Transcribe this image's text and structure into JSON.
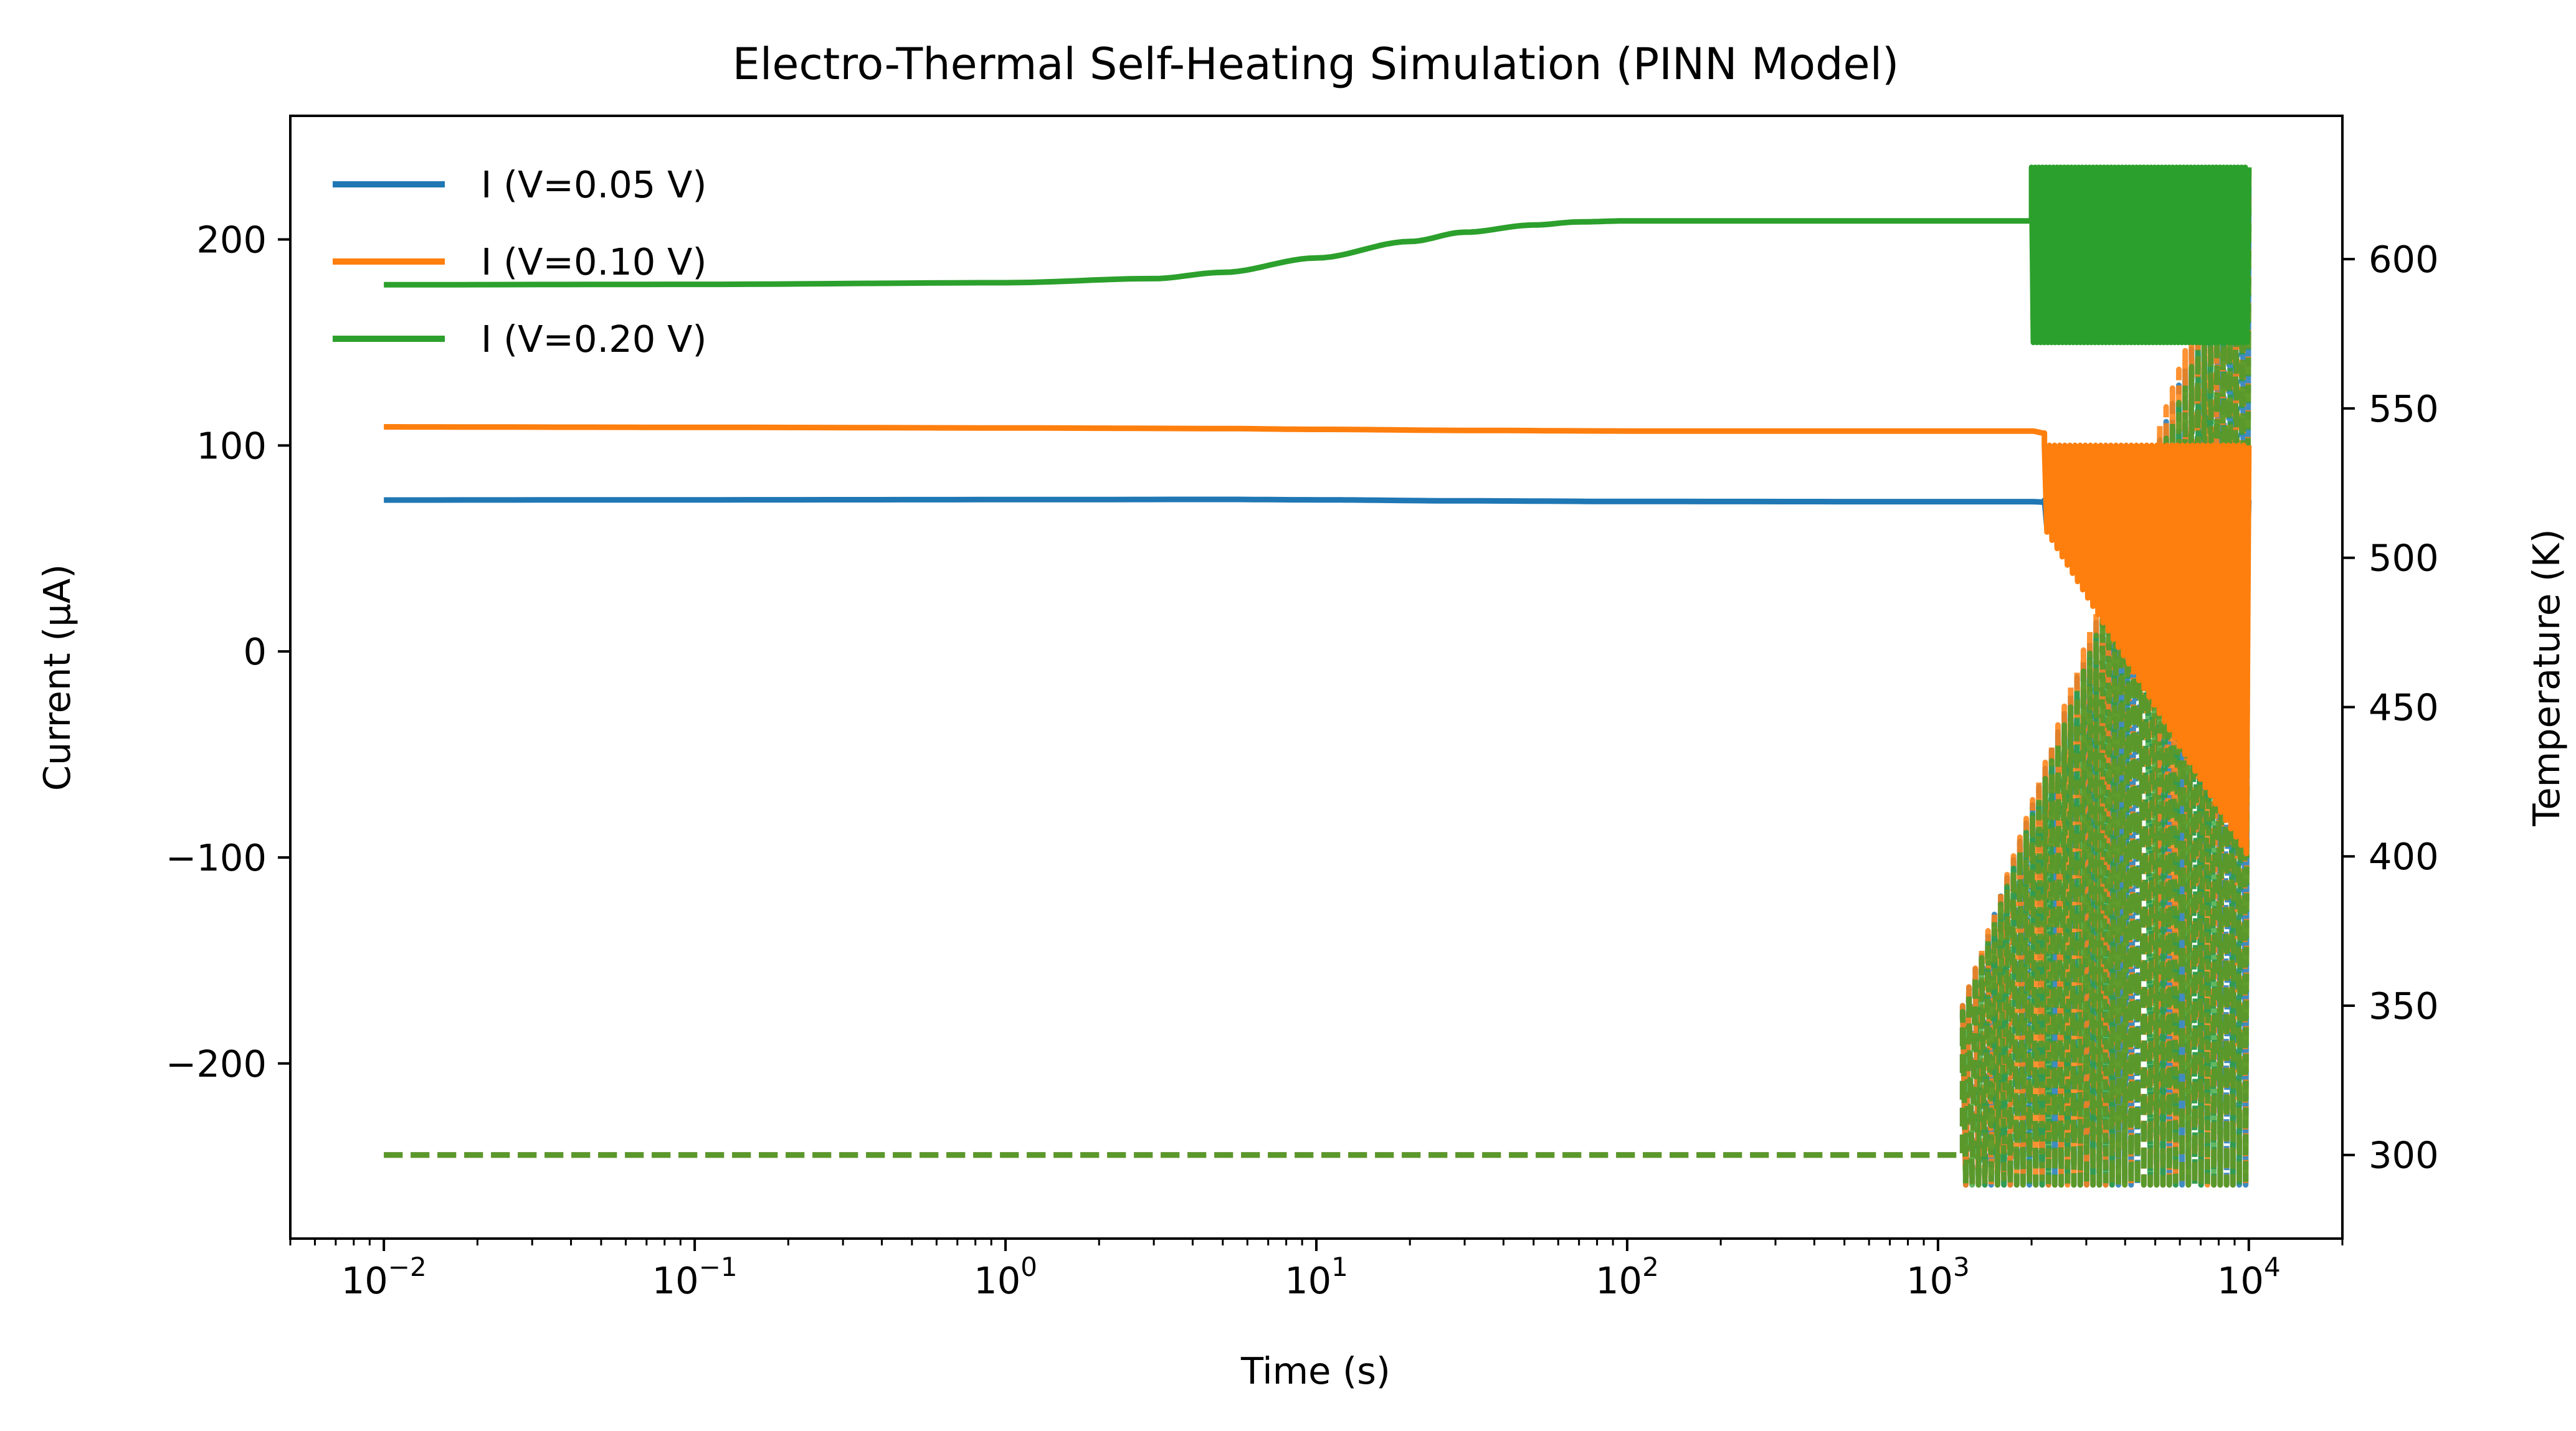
{
  "chart_data": {
    "type": "line",
    "title": "Electro-Thermal Self-Heating Simulation (PINN Model)",
    "xlabel": "Time (s)",
    "ylabel": "Current (μA)",
    "y2label": "Temperature (K)",
    "xscale": "log",
    "xlim": [
      0.005,
      20000
    ],
    "ylim": [
      -285,
      260
    ],
    "y2lim": [
      272,
      648
    ],
    "grid": false,
    "legend_position": "top-left",
    "x_ticks": [
      {
        "value": 0.01,
        "base": "10",
        "exp": "−2"
      },
      {
        "value": 0.1,
        "base": "10",
        "exp": "−1"
      },
      {
        "value": 1,
        "base": "10",
        "exp": "0"
      },
      {
        "value": 10,
        "base": "10",
        "exp": "1"
      },
      {
        "value": 100,
        "base": "10",
        "exp": "2"
      },
      {
        "value": 1000,
        "base": "10",
        "exp": "3"
      },
      {
        "value": 10000,
        "base": "10",
        "exp": "4"
      }
    ],
    "y_ticks": [
      {
        "value": 200,
        "label": "200"
      },
      {
        "value": 100,
        "label": "100"
      },
      {
        "value": 0,
        "label": "0"
      },
      {
        "value": -100,
        "label": "−100"
      },
      {
        "value": -200,
        "label": "−200"
      }
    ],
    "y2_ticks": [
      {
        "value": 600,
        "label": "600"
      },
      {
        "value": 550,
        "label": "550"
      },
      {
        "value": 500,
        "label": "500"
      },
      {
        "value": 450,
        "label": "450"
      },
      {
        "value": 400,
        "label": "400"
      },
      {
        "value": 350,
        "label": "350"
      },
      {
        "value": 300,
        "label": "300"
      }
    ],
    "series": [
      {
        "name": "I (V=0.05 V)",
        "color": "#1f77b4",
        "axis": "left",
        "x": [
          0.01,
          0.1,
          1,
          5,
          10,
          30,
          100,
          1000,
          2000,
          2200
        ],
        "y": [
          73.5,
          73.6,
          73.7,
          73.8,
          73.6,
          73.1,
          72.8,
          72.7,
          72.7,
          72.5
        ],
        "oscillation": {
          "start": 2200,
          "end": 10000,
          "upper": 73.5,
          "lower_start": 60,
          "lower_end": 30,
          "cycles": 40
        }
      },
      {
        "name": "I (V=0.10 V)",
        "color": "#ff7f0e",
        "axis": "left",
        "x": [
          0.01,
          0.1,
          1,
          5,
          10,
          30,
          100,
          1000,
          2000,
          2200
        ],
        "y": [
          109,
          108.8,
          108.5,
          108.2,
          107.8,
          107.3,
          107,
          107,
          107,
          106
        ],
        "oscillation": {
          "start": 2200,
          "end": 10000,
          "upper": 100,
          "lower_start": 60,
          "lower_end": -100,
          "cycles": 40
        }
      },
      {
        "name": "I (V=0.20 V)",
        "color": "#2ca02c",
        "axis": "left",
        "x": [
          0.01,
          0.1,
          1,
          3,
          5,
          10,
          20,
          30,
          50,
          70,
          100,
          300,
          1000,
          2000
        ],
        "y": [
          178,
          178.2,
          179,
          181,
          184,
          191,
          199,
          203.5,
          207,
          208.5,
          209,
          209,
          209,
          209
        ],
        "oscillation": {
          "start": 2000,
          "end": 10000,
          "upper": 235,
          "lower_start": 150,
          "lower_end": 150,
          "cycles": 60
        }
      }
    ],
    "temperature_series": [
      {
        "color": "#1f77b4",
        "axis": "right",
        "x": [
          0.01,
          1200
        ],
        "y": [
          300,
          300
        ],
        "oscillation": {
          "start": 1200,
          "end": 10000,
          "lower": 290,
          "upper_start": 350,
          "upper_end": 625,
          "cycles": 45
        }
      },
      {
        "color": "#ff7f0e",
        "axis": "right",
        "x": [
          0.01,
          1200
        ],
        "y": [
          300,
          300
        ],
        "oscillation": {
          "start": 1200,
          "end": 10000,
          "lower": 290,
          "upper_start": 350,
          "upper_end": 632,
          "cycles": 45
        }
      },
      {
        "color": "#2ca02c",
        "axis": "right",
        "x": [
          0.01,
          1200
        ],
        "y": [
          300,
          300
        ],
        "oscillation": {
          "start": 1200,
          "end": 10000,
          "lower": 290,
          "upper_start": 348,
          "upper_end": 618,
          "cycles": 45
        }
      }
    ]
  }
}
